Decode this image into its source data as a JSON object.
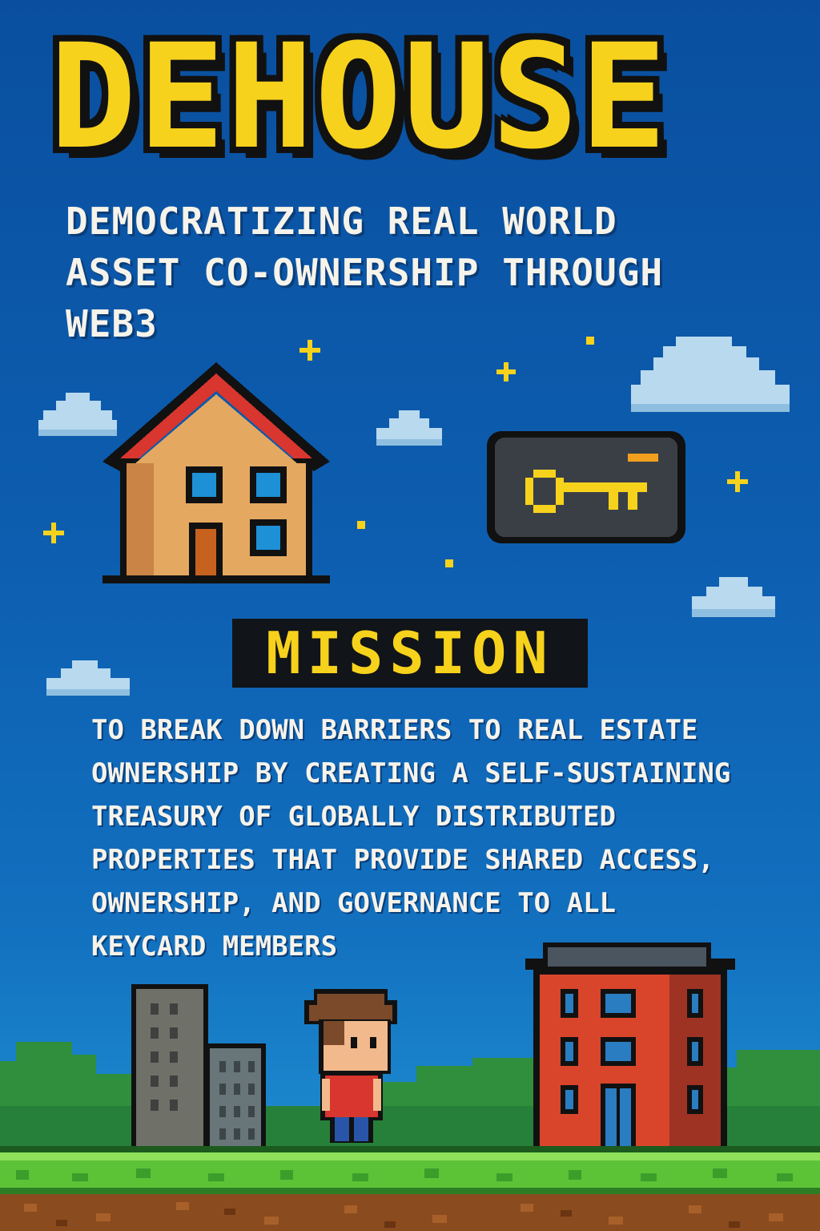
{
  "poster": {
    "title": "DEHOUSE",
    "subtitle": "DEMOCRATIZING REAL WORLD ASSET CO-OWNERSHIP THROUGH WEB3",
    "subtitle_lines": [
      "DEMOCRATIZING REAL WORLD",
      "ASSET CO-OWNERSHIP THROUGH",
      "WEB3"
    ],
    "mission_heading": "MISSION",
    "mission_lines": [
      "TO BREAK DOWN BARRIERS TO REAL ESTATE",
      "OWNERSHIP BY CREATING A SELF-SUSTAINING",
      "TREASURY OF GLOBALLY DISTRIBUTED",
      "PROPERTIES THAT PROVIDE SHARED ACCESS,",
      "OWNERSHIP, AND GOVERNANCE TO ALL",
      "KEYCARD MEMBERS"
    ]
  },
  "colors": {
    "title_yellow": "#f7d21c",
    "sky_blue": "#0d5eb0",
    "text_white": "#f6f3ea",
    "roof_red": "#d8362e",
    "house_tan": "#e4a860",
    "keycard_dark": "#3a3f46",
    "grass_green": "#5cc337",
    "building_red": "#d9452b"
  },
  "icons": [
    "pixel-house-icon",
    "keycard-key-icon",
    "cloud-icon",
    "star-sparkle-icon",
    "skyscraper-icon",
    "pixel-character-icon",
    "apartment-building-icon",
    "grass-ground-icon"
  ]
}
